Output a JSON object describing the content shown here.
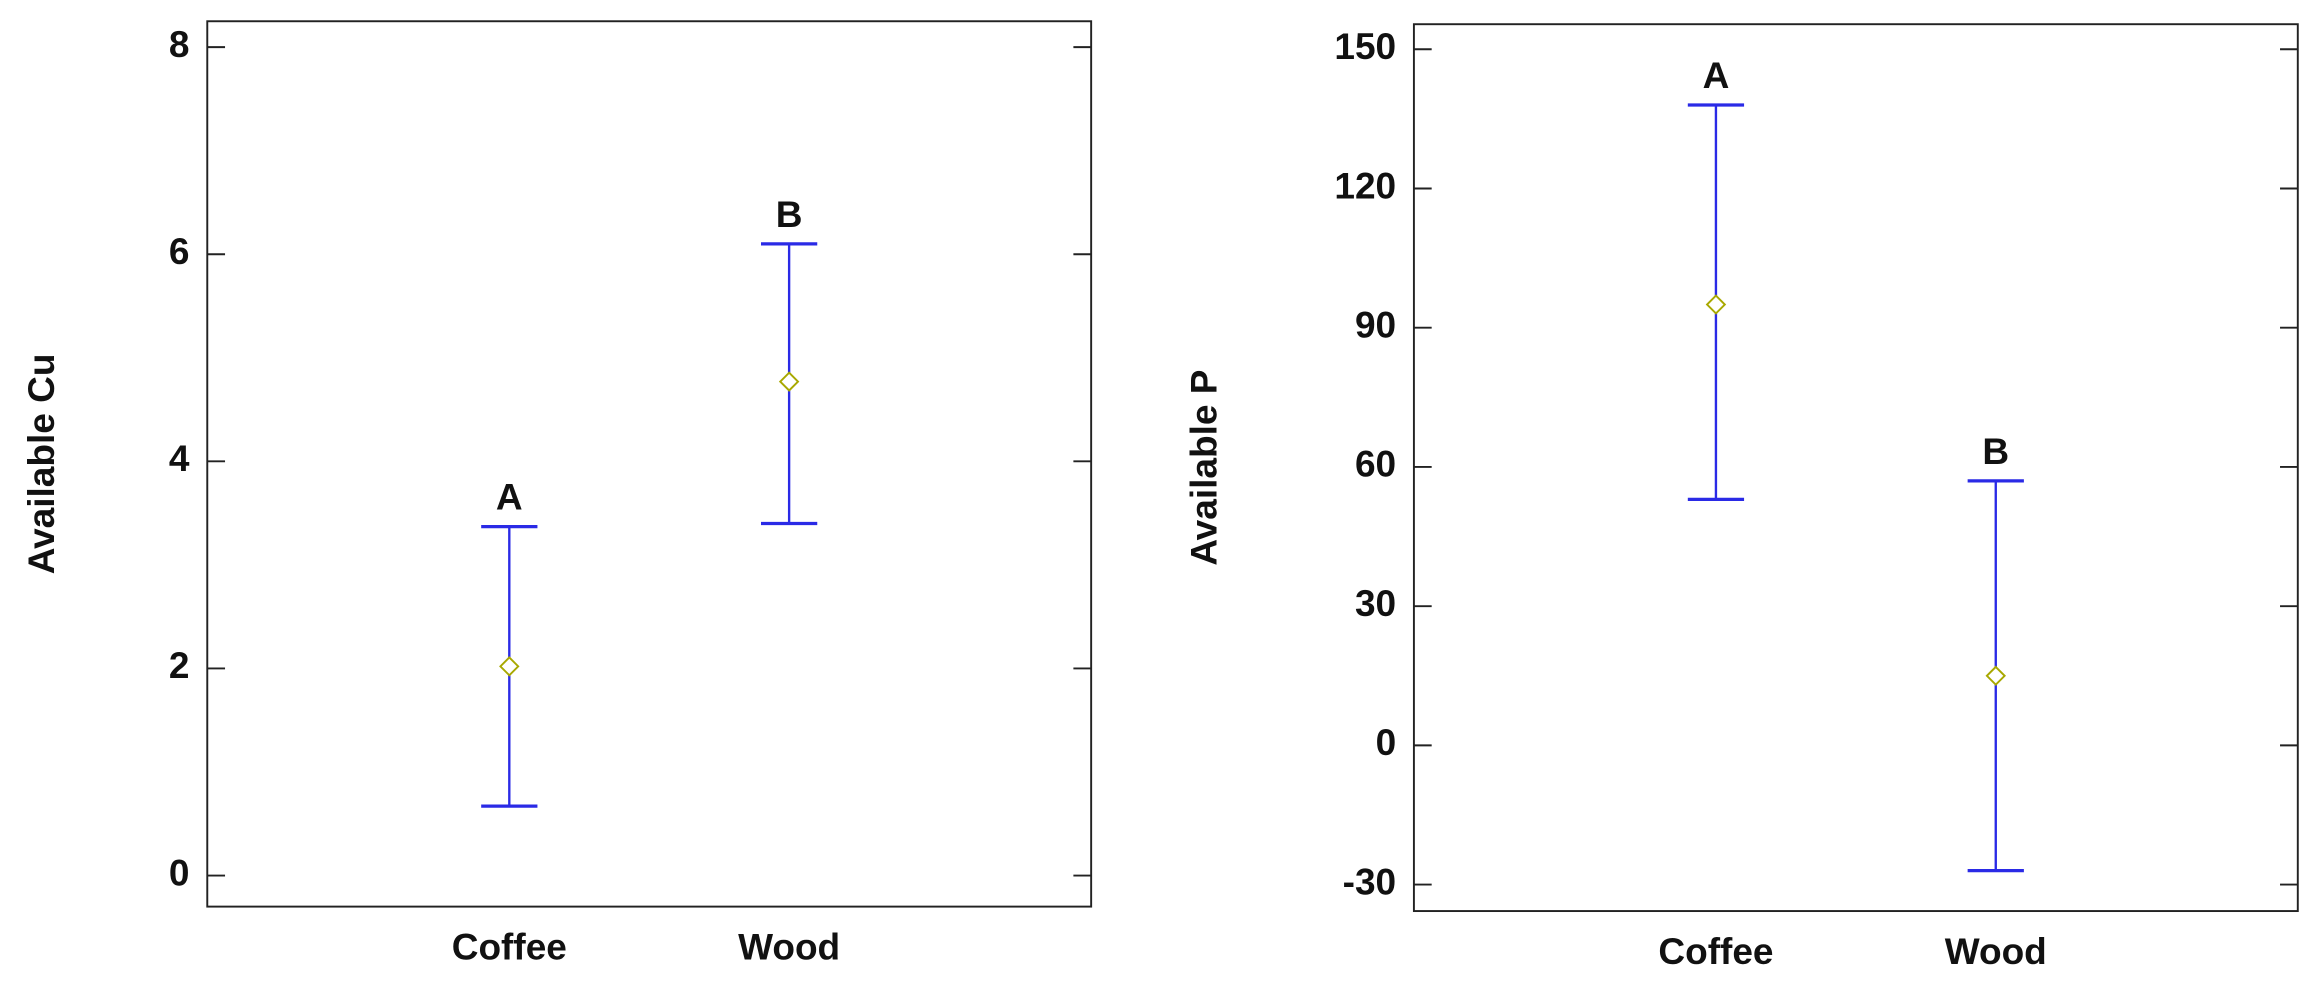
{
  "chart_data": [
    {
      "type": "errorbar",
      "ylabel": "Available Cu",
      "categories": [
        "Coffee",
        "Wood"
      ],
      "values": [
        2.02,
        4.77
      ],
      "lower": [
        0.67,
        3.4
      ],
      "upper": [
        3.37,
        6.1
      ],
      "group_labels": [
        "A",
        "B"
      ],
      "color": "#2a2ae6",
      "marker_color": "#a8a800",
      "ylim": [
        -0.3,
        8.25
      ],
      "yticks": [
        0,
        2,
        4,
        6,
        8
      ]
    },
    {
      "type": "errorbar",
      "ylabel": "Available P",
      "categories": [
        "Coffee",
        "Wood"
      ],
      "values": [
        95,
        15
      ],
      "lower": [
        53,
        -27
      ],
      "upper": [
        138,
        57
      ],
      "group_labels": [
        "A",
        "B"
      ],
      "color": "#2a2ae6",
      "marker_color": "#a8a800",
      "ylim": [
        -35.7,
        155.4
      ],
      "yticks": [
        -30,
        0,
        30,
        60,
        90,
        120,
        150
      ]
    }
  ]
}
